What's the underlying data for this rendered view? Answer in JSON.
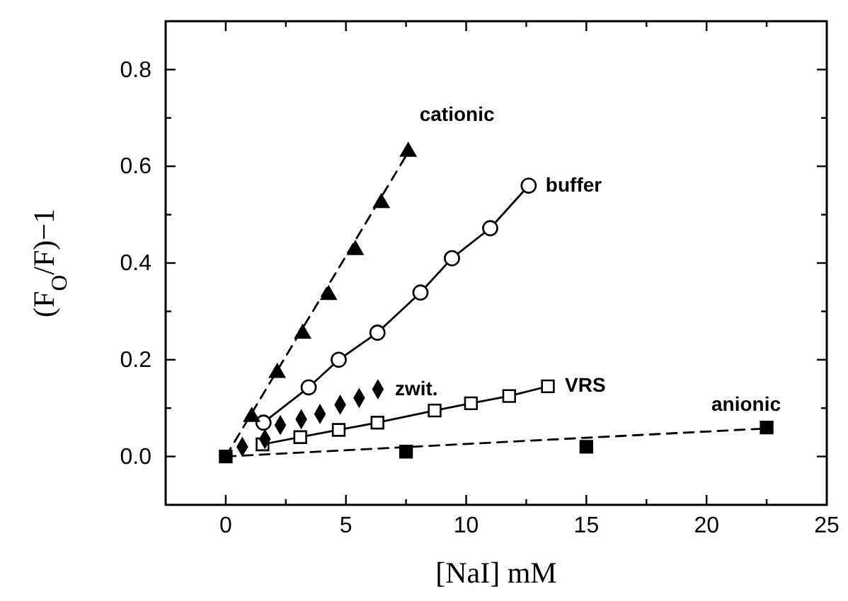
{
  "chart_data": {
    "type": "scatter",
    "xlabel": "[NaI] mM",
    "ylabel": "(F$_{O}$/F)−1",
    "xlim": [
      -2.5,
      25
    ],
    "ylim": [
      -0.1,
      0.9
    ],
    "xticks": [
      {
        "value": -2.5,
        "label": null
      },
      0,
      {
        "value": 2.5,
        "label": null
      },
      5,
      {
        "value": 7.5,
        "label": null
      },
      10,
      {
        "value": 12.5,
        "label": null
      },
      15,
      {
        "value": 17.5,
        "label": null
      },
      20,
      {
        "value": 22.5,
        "label": null
      },
      25
    ],
    "yticks": [
      {
        "value": -0.1,
        "label": null
      },
      {
        "value": 0,
        "label": "0.0"
      },
      {
        "value": 0.1,
        "label": null
      },
      {
        "value": 0.2,
        "label": "0.2"
      },
      {
        "value": 0.3,
        "label": null
      },
      {
        "value": 0.4,
        "label": "0.4"
      },
      {
        "value": 0.5,
        "label": null
      },
      {
        "value": 0.6,
        "label": "0.6"
      },
      {
        "value": 0.7,
        "label": null
      },
      {
        "value": 0.8,
        "label": "0.8"
      }
    ],
    "grid": false,
    "series": [
      {
        "type": "line",
        "color": "#000000",
        "marker": "none",
        "line_style": "dashed",
        "x": [
          0,
          7.6
        ],
        "values": [
          0,
          0.63
        ]
      },
      {
        "type": "line",
        "color": "#000000",
        "marker": "none",
        "line_style": "dashed",
        "x": [
          0,
          22.5
        ],
        "values": [
          0,
          0.058
        ]
      },
      {
        "name": "cationic",
        "color": "#000000",
        "marker": "triangle",
        "x": [
          1.08,
          2.14,
          3.2,
          4.28,
          5.39,
          6.47,
          7.59
        ],
        "values": [
          0.082,
          0.173,
          0.254,
          0.334,
          0.427,
          0.524,
          0.63
        ]
      },
      {
        "type": "line",
        "name": "buffer",
        "color": "#000000",
        "marker": "circle",
        "line_style": "solid",
        "x": [
          1.57,
          3.45,
          4.7,
          6.31,
          8.1,
          9.41,
          11.0,
          12.6
        ],
        "values": [
          0.07,
          0.143,
          0.2,
          0.256,
          0.339,
          0.41,
          0.472,
          0.56
        ]
      },
      {
        "name": "zwit.",
        "color": "#000000",
        "marker": "diamond",
        "x": [
          0.69,
          1.63,
          2.27,
          3.14,
          3.92,
          4.76,
          5.55,
          6.33
        ],
        "values": [
          0.02,
          0.036,
          0.065,
          0.077,
          0.088,
          0.107,
          0.121,
          0.139
        ]
      },
      {
        "type": "line",
        "name": "VRS",
        "color": "#000000",
        "marker": "square",
        "line_style": "solid",
        "x": [
          1.53,
          3.1,
          4.7,
          6.31,
          8.69,
          10.2,
          11.79,
          13.4
        ],
        "values": [
          0.025,
          0.04,
          0.055,
          0.07,
          0.095,
          0.11,
          0.125,
          0.145
        ]
      },
      {
        "name": "anionic",
        "color": "#000000",
        "marker": "square",
        "x": [
          0,
          7.5,
          15,
          22.5
        ],
        "values": [
          0,
          0.01,
          0.02,
          0.06
        ]
      }
    ]
  }
}
